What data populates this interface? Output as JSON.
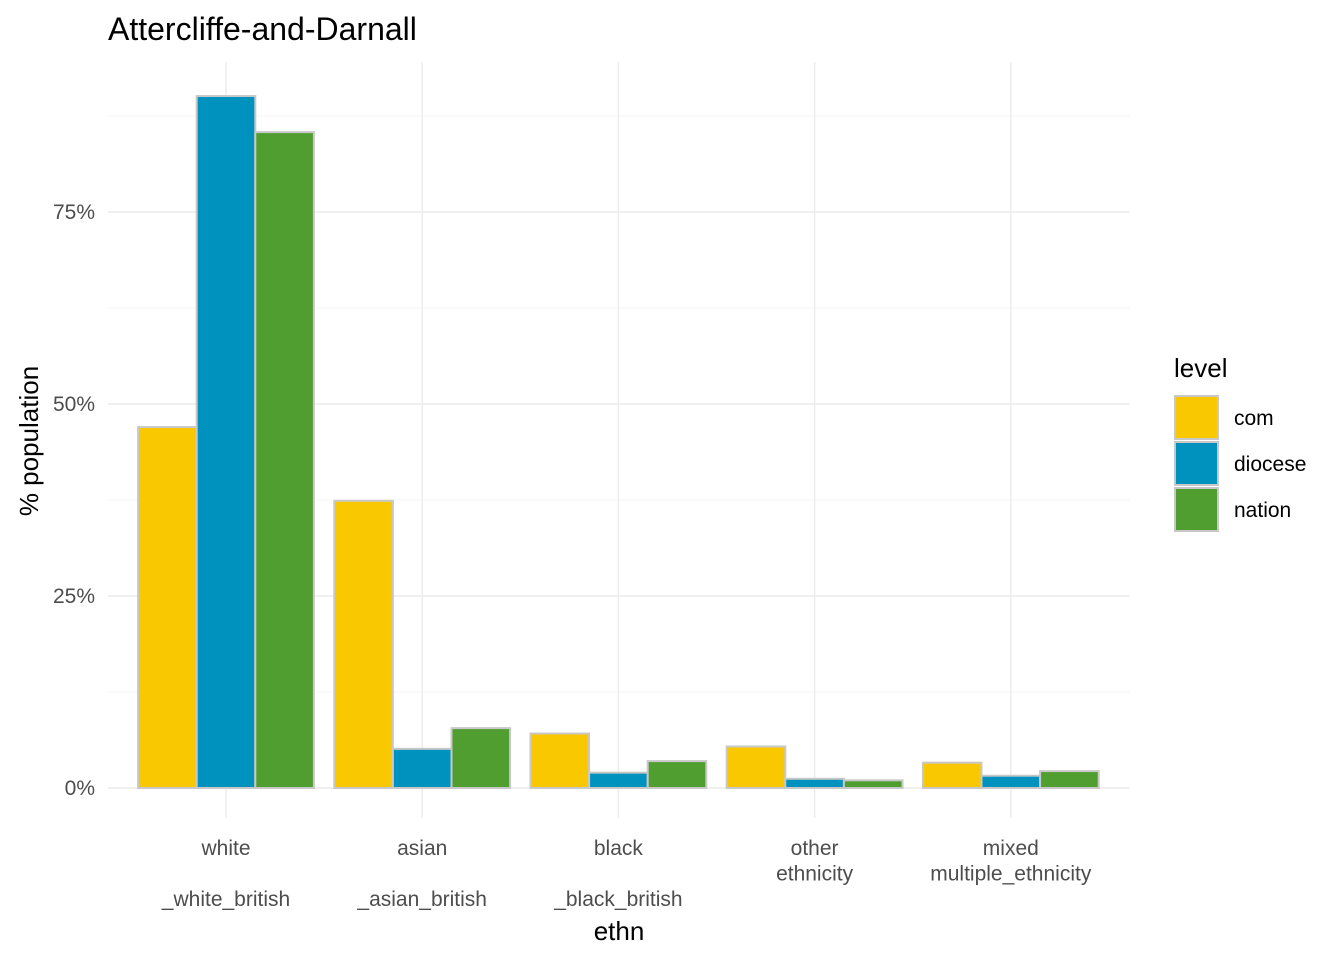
{
  "chart_data": {
    "type": "bar",
    "title": "Attercliffe-and-Darnall",
    "xlabel": "ethn",
    "ylabel": "% population",
    "categories": [
      [
        "white",
        "",
        "_white_british"
      ],
      [
        "asian",
        "",
        "_asian_british"
      ],
      [
        "black",
        "",
        "_black_british"
      ],
      [
        "other",
        "ethnicity"
      ],
      [
        "mixed",
        "multiple_ethnicity"
      ]
    ],
    "series": [
      {
        "name": "com",
        "color": "#F9C800",
        "values": [
          47.0,
          37.4,
          7.1,
          5.4,
          3.3
        ]
      },
      {
        "name": "diocese",
        "color": "#0092BF",
        "values": [
          90.1,
          5.1,
          2.0,
          1.2,
          1.6
        ]
      },
      {
        "name": "nation",
        "color": "#509E2F",
        "values": [
          85.4,
          7.8,
          3.5,
          1.0,
          2.2
        ]
      }
    ],
    "ylim": [
      0,
      92.5
    ],
    "yticks": [
      0,
      25,
      50,
      75
    ],
    "ytick_labels": [
      "0%",
      "25%",
      "50%",
      "75%"
    ],
    "grid": true,
    "legend": {
      "title": "level",
      "position": "right"
    }
  }
}
